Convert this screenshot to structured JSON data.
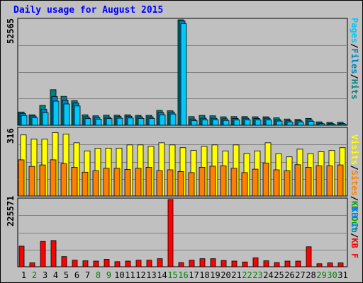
{
  "title": "Daily usage for August 2015",
  "colors": {
    "title": "#0000ff",
    "plot_bg": "#c0c0c0",
    "pages": "#00c8f8",
    "files": "#0080c0",
    "hits": "#008080",
    "visits": "#ffff00",
    "sites": "#ff8000",
    "kb_in": "#0080ff",
    "kb_out": "#00a000",
    "kbf": "#ff0000",
    "weekday": "#000000",
    "weekend": "#008000"
  },
  "legend_top": {
    "pages": "Pages",
    "sep1": "/",
    "files": "Files",
    "sep2": "/",
    "hits": "Hits"
  },
  "legend_mid": {
    "visits": "Visits",
    "sep1": "/",
    "sites": "Sites",
    "sep2": "/",
    "kb_out": "KB Out"
  },
  "legend_bot": {
    "kb_in": "KB In",
    "sep1": "/",
    "kb_f": "KB F"
  },
  "chart_data": [
    {
      "type": "bar",
      "panel": "top",
      "ymax_label": "52565",
      "ylim": [
        0,
        52565
      ],
      "categories": [
        "1",
        "2",
        "3",
        "4",
        "5",
        "6",
        "7",
        "8",
        "9",
        "10",
        "11",
        "12",
        "13",
        "14",
        "15",
        "16",
        "17",
        "18",
        "19",
        "20",
        "21",
        "22",
        "23",
        "24",
        "25",
        "26",
        "27",
        "28",
        "29",
        "30",
        "31"
      ],
      "weekend_days": [
        "2",
        "8",
        "9",
        "15",
        "16",
        "22",
        "23",
        "29",
        "30"
      ],
      "series": [
        {
          "name": "Hits",
          "key": "hits",
          "values": [
            6600,
            5200,
            9900,
            17700,
            14400,
            12300,
            5200,
            4700,
            5000,
            5000,
            5200,
            4900,
            4900,
            7400,
            7200,
            52565,
            4300,
            4900,
            4700,
            4200,
            4300,
            4300,
            4200,
            4200,
            3700,
            3100,
            2900,
            3400,
            1700,
            1400,
            1500
          ]
        },
        {
          "name": "Files",
          "key": "files",
          "values": [
            5900,
            4600,
            7900,
            14300,
            12500,
            11100,
            4200,
            3800,
            4100,
            4300,
            4500,
            4200,
            4200,
            6300,
            6600,
            52000,
            3100,
            3500,
            3500,
            3200,
            3400,
            3500,
            3400,
            3500,
            2800,
            2200,
            2200,
            2600,
            1000,
            800,
            900
          ]
        },
        {
          "name": "Pages",
          "key": "pages",
          "values": [
            4800,
            3700,
            6300,
            12000,
            10600,
            9600,
            3300,
            3000,
            3300,
            3500,
            3600,
            3400,
            3400,
            5200,
            5600,
            50600,
            2300,
            2700,
            2800,
            2400,
            2600,
            2700,
            2700,
            2700,
            2100,
            1600,
            1600,
            1900,
            700,
            500,
            600
          ]
        }
      ]
    },
    {
      "type": "bar",
      "panel": "middle",
      "ymax_label": "316",
      "ylim": [
        0,
        316
      ],
      "categories": [
        "1",
        "2",
        "3",
        "4",
        "5",
        "6",
        "7",
        "8",
        "9",
        "10",
        "11",
        "12",
        "13",
        "14",
        "15",
        "16",
        "17",
        "18",
        "19",
        "20",
        "21",
        "22",
        "23",
        "24",
        "25",
        "26",
        "27",
        "28",
        "29",
        "30",
        "31"
      ],
      "series": [
        {
          "name": "Visits",
          "key": "visits",
          "values": [
            287,
            267,
            267,
            298,
            291,
            250,
            212,
            224,
            225,
            225,
            240,
            240,
            233,
            250,
            240,
            227,
            214,
            233,
            240,
            212,
            240,
            200,
            212,
            250,
            199,
            184,
            220,
            199,
            208,
            214,
            227
          ]
        },
        {
          "name": "Sites",
          "key": "sites",
          "values": [
            170,
            139,
            146,
            170,
            152,
            135,
            112,
            119,
            130,
            130,
            125,
            130,
            135,
            119,
            123,
            115,
            110,
            135,
            140,
            142,
            130,
            110,
            126,
            155,
            123,
            119,
            147,
            135,
            142,
            142,
            146
          ]
        }
      ]
    },
    {
      "type": "bar",
      "panel": "bottom",
      "ymax_label": "225571",
      "ylim": [
        0,
        225571
      ],
      "categories": [
        "1",
        "2",
        "3",
        "4",
        "5",
        "6",
        "7",
        "8",
        "9",
        "10",
        "11",
        "12",
        "13",
        "14",
        "15",
        "16",
        "17",
        "18",
        "19",
        "20",
        "21",
        "22",
        "23",
        "24",
        "25",
        "26",
        "27",
        "28",
        "29",
        "30",
        "31"
      ],
      "series": [
        {
          "name": "KB F",
          "key": "kbf",
          "values": [
            69000,
            13000,
            85000,
            88000,
            34000,
            22000,
            20000,
            19000,
            25000,
            17000,
            19000,
            22000,
            22000,
            27000,
            225571,
            14000,
            22000,
            27000,
            27000,
            21000,
            19000,
            16000,
            30000,
            20000,
            14000,
            19000,
            19000,
            67000,
            10000,
            13000,
            13000
          ]
        }
      ]
    }
  ]
}
